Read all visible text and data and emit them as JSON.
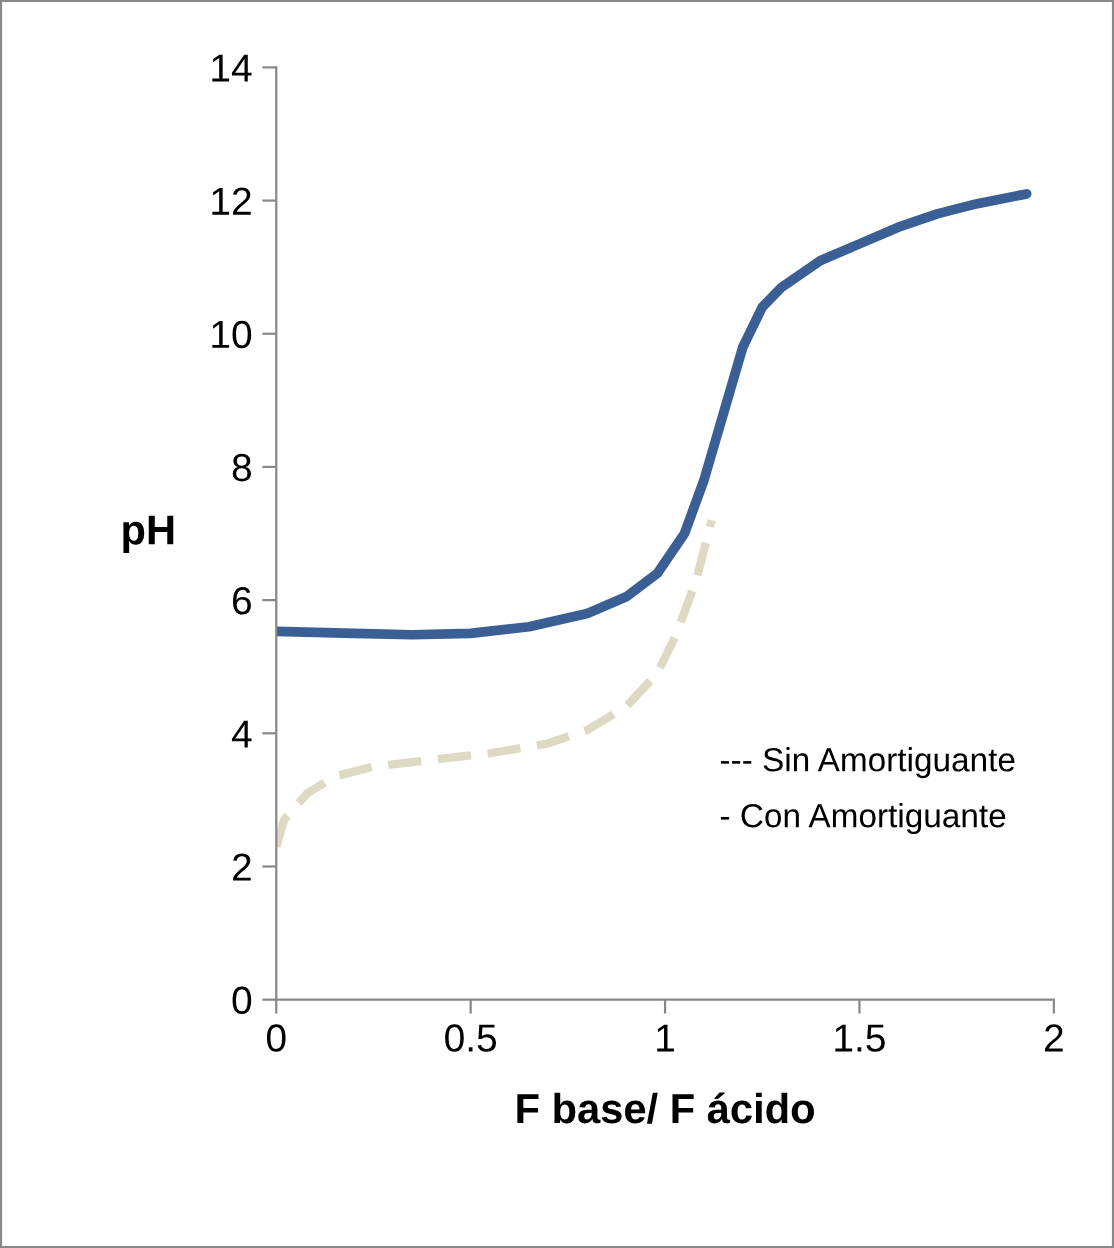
{
  "chart_data": {
    "type": "line",
    "xlabel": "F base/ F ácido",
    "ylabel": "pH",
    "xlim": [
      0,
      2
    ],
    "ylim": [
      0,
      14
    ],
    "xticks": [
      0,
      0.5,
      1,
      1.5,
      2
    ],
    "yticks": [
      0,
      2,
      4,
      6,
      8,
      10,
      12,
      14
    ],
    "grid": false,
    "legend": false,
    "marker": "none",
    "annotations": [
      "--- Sin Amortiguante",
      "- Con Amortiguante"
    ],
    "series": [
      {
        "color": "#3a5f95",
        "line_style": "solid",
        "x": [
          0,
          0.2,
          0.35,
          0.5,
          0.65,
          0.8,
          0.9,
          0.98,
          1.05,
          1.1,
          1.15,
          1.2,
          1.25,
          1.3,
          1.4,
          1.5,
          1.6,
          1.7,
          1.8,
          1.93
        ],
        "values": [
          5.53,
          5.5,
          5.48,
          5.5,
          5.6,
          5.8,
          6.05,
          6.4,
          7.0,
          7.8,
          8.8,
          9.8,
          10.4,
          10.7,
          11.1,
          11.35,
          11.6,
          11.8,
          11.95,
          12.1
        ]
      },
      {
        "color": "#ddd9c3",
        "line_style": "dashed",
        "x": [
          0,
          0.02,
          0.08,
          0.15,
          0.25,
          0.4,
          0.55,
          0.7,
          0.8,
          0.9,
          0.98,
          1.03,
          1.08,
          1.12
        ],
        "values": [
          2.3,
          2.7,
          3.1,
          3.35,
          3.5,
          3.6,
          3.7,
          3.85,
          4.05,
          4.4,
          4.9,
          5.5,
          6.3,
          7.2
        ]
      }
    ]
  }
}
